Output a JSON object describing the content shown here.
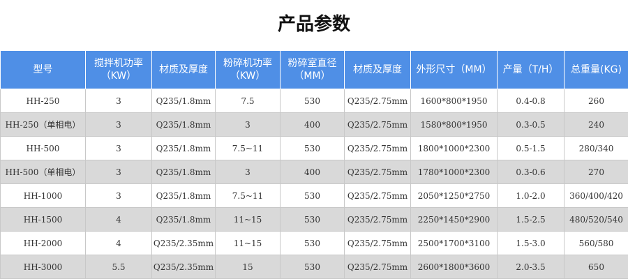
{
  "header": {
    "title": "产品参数"
  },
  "table": {
    "columns": [
      [
        "型号"
      ],
      [
        "搅拌机功率",
        "（KW）"
      ],
      [
        "材质及厚度"
      ],
      [
        "粉碎机功率",
        "（KW）"
      ],
      [
        "粉碎室直径",
        "（MM）"
      ],
      [
        "材质及厚度"
      ],
      [
        "外形尺寸（MM）"
      ],
      [
        "产量（T/H）"
      ],
      [
        "总重量(KG)"
      ]
    ],
    "rows": [
      [
        "HH-250",
        "3",
        "Q235/1.8mm",
        "7.5",
        "530",
        "Q235/2.75mm",
        "1600*800*1950",
        "0.4-0.8",
        "260"
      ],
      [
        "HH-250（单相电）",
        "3",
        "Q235/1.8mm",
        "3",
        "400",
        "Q235/2.75mm",
        "1580*800*1950",
        "0.3-0.5",
        "240"
      ],
      [
        "HH-500",
        "3",
        "Q235/1.8mm",
        "7.5~11",
        "530",
        "Q235/2.75mm",
        "1800*1000*2300",
        "0.5-1.5",
        "280/340"
      ],
      [
        "HH-500（单相电）",
        "3",
        "Q235/1.8mm",
        "3",
        "400",
        "Q235/2.75mm",
        "1780*1000*2300",
        "0.3-0.6",
        "270"
      ],
      [
        "HH-1000",
        "3",
        "Q235/1.8mm",
        "7.5~11",
        "530",
        "Q235/2.75mm",
        "2050*1250*2750",
        "1.0-2.0",
        "360/400/420"
      ],
      [
        "HH-1500",
        "4",
        "Q235/1.8mm",
        "11~15",
        "530",
        "Q235/2.75mm",
        "2250*1450*2900",
        "1.5-2.5",
        "480/520/540"
      ],
      [
        "HH-2000",
        "4",
        "Q235/2.35mm",
        "11~15",
        "530",
        "Q235/2.75mm",
        "2500*1700*3100",
        "1.5-3.0",
        "560/580"
      ],
      [
        "HH-3000",
        "5.5",
        "Q235/2.35mm",
        "15",
        "530",
        "Q235/2.75mm",
        "2600*1800*3600",
        "2.0-3.5",
        "650"
      ]
    ]
  }
}
